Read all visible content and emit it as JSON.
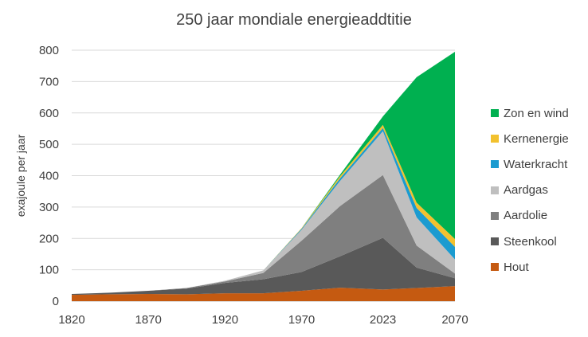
{
  "chart_data": {
    "type": "area",
    "stacked": true,
    "title": "250 jaar mondiale energieaddtitie",
    "ylabel": "exajoule per jaar",
    "xlabel": "",
    "x": [
      1820,
      1845,
      1870,
      1895,
      1920,
      1945,
      1970,
      1995,
      2023,
      2045,
      2070
    ],
    "x_tick_labels": [
      "1820",
      "1870",
      "1920",
      "1970",
      "2023",
      "2070"
    ],
    "y_ticks": [
      0,
      100,
      200,
      300,
      400,
      500,
      600,
      700,
      800
    ],
    "ylim": [
      0,
      800
    ],
    "grid": "horizontal",
    "legend_position": "right",
    "series": [
      {
        "name": "Hout",
        "color": "#C55A11",
        "values": [
          20,
          22,
          23,
          22,
          25,
          25,
          33,
          43,
          37,
          42,
          48
        ]
      },
      {
        "name": "Steenkool",
        "color": "#595959",
        "values": [
          3,
          5,
          10,
          18,
          33,
          45,
          60,
          100,
          165,
          65,
          25
        ]
      },
      {
        "name": "Aardolie",
        "color": "#7F7F7F",
        "values": [
          0,
          0,
          0,
          2,
          5,
          20,
          100,
          160,
          200,
          70,
          15
        ]
      },
      {
        "name": "Aardgas",
        "color": "#BFBFBF",
        "values": [
          0,
          0,
          0,
          0,
          2,
          8,
          35,
          80,
          140,
          90,
          45
        ]
      },
      {
        "name": "Waterkracht",
        "color": "#1B9BD0",
        "values": [
          0,
          0,
          0,
          0,
          0,
          0,
          3,
          8,
          10,
          30,
          40
        ]
      },
      {
        "name": "Kernenergie",
        "color": "#F2C12E",
        "values": [
          0,
          0,
          0,
          0,
          0,
          0,
          2,
          7,
          10,
          17,
          25
        ]
      },
      {
        "name": "Zon en wind",
        "color": "#00B050",
        "values": [
          0,
          0,
          0,
          0,
          0,
          0,
          0,
          5,
          27,
          400,
          597
        ]
      }
    ]
  }
}
